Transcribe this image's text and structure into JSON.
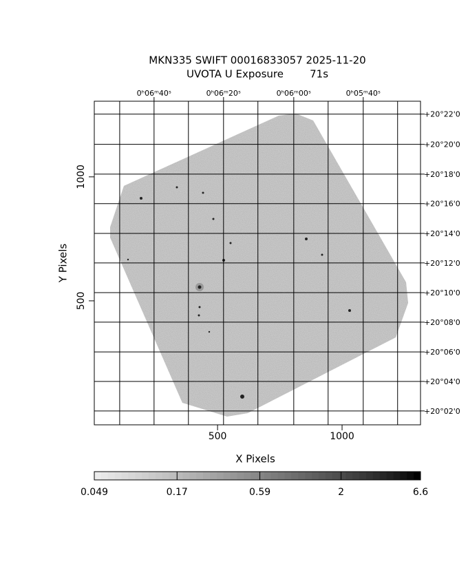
{
  "chart_data": {
    "type": "image",
    "title": "MKN335 SWIFT 00016833057 2025-11-20",
    "subtitle": "UVOTA U Exposure        71s",
    "x_label": "X Pixels",
    "y_label": "Y Pixels",
    "xlim": [
      5,
      1315
    ],
    "ylim": [
      0,
      1305
    ],
    "xticks": [
      500,
      1000
    ],
    "yticks": [
      500,
      1000
    ],
    "x2lim": [
      5,
      1315
    ],
    "x2ticks": [
      {
        "value": 245,
        "label": "0ʰ06ᵐ40ˢ"
      },
      {
        "value": 524,
        "label": "0ʰ06ᵐ20ˢ"
      },
      {
        "value": 806,
        "label": "0ʰ06ᵐ00ˢ"
      },
      {
        "value": 1085,
        "label": "0ʰ05ᵐ40ˢ"
      }
    ],
    "x2grid": [
      107,
      245,
      383,
      524,
      662,
      806,
      944,
      1085,
      1223
    ],
    "y2lim": [
      0,
      1305
    ],
    "y2ticks": [
      {
        "value": 1253,
        "label": "+20°22'0"
      },
      {
        "value": 1131,
        "label": "+20°20'0"
      },
      {
        "value": 1011,
        "label": "+20°18'0"
      },
      {
        "value": 892,
        "label": "+20°16'0"
      },
      {
        "value": 772,
        "label": "+20°14'0"
      },
      {
        "value": 653,
        "label": "+20°12'0"
      },
      {
        "value": 533,
        "label": "+20°10'0"
      },
      {
        "value": 414,
        "label": "+20°08'0"
      },
      {
        "value": 294,
        "label": "+20°06'0"
      },
      {
        "value": 175,
        "label": "+20°04'0"
      },
      {
        "value": 56,
        "label": "+20°02'0"
      }
    ],
    "grid": true,
    "colorbar": {
      "log": true,
      "lim": [
        0.049,
        6.6
      ],
      "ticks": [
        0.049,
        0.17,
        0.59,
        2,
        6.6
      ]
    }
  }
}
